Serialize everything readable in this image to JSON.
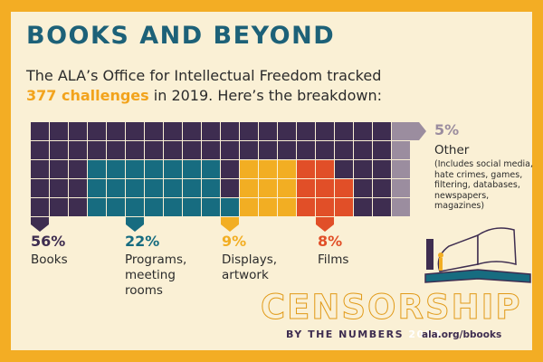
{
  "title": "BOOKS AND BEYOND",
  "intro": {
    "line1": "The ALA’s Office for Intellectual Freedom tracked",
    "highlight": "377 challenges",
    "line2_rest": " in 2019. Here’s the breakdown:"
  },
  "chart_data": {
    "type": "waffle",
    "total_challenges": 377,
    "year": 2019,
    "grid": {
      "cols": 20,
      "rows": 5
    },
    "categories": [
      {
        "name": "Books",
        "label": "Books",
        "percent": 56,
        "color": "#3e2d50"
      },
      {
        "name": "Programs, meeting rooms",
        "label": "Programs, meeting rooms",
        "percent": 22,
        "color": "#176c80"
      },
      {
        "name": "Displays, artwork",
        "label": "Displays, artwork",
        "percent": 9,
        "color": "#f2ae23"
      },
      {
        "name": "Films",
        "label": "Films",
        "percent": 8,
        "color": "#e14f28"
      },
      {
        "name": "Other",
        "label": "Other",
        "percent": 5,
        "color": "#9b8d9f",
        "description": "(Includes social media, hate crimes, games, filtering, databases, newspapers, magazines)"
      }
    ]
  },
  "labels": {
    "books": {
      "pct": "56%",
      "text": "Books"
    },
    "programs": {
      "pct": "22%",
      "text1": "Programs,",
      "text2": "meeting",
      "text3": "rooms"
    },
    "displays": {
      "pct": "9%",
      "text1": "Displays,",
      "text2": "artwork"
    },
    "films": {
      "pct": "8%",
      "text": "Films"
    },
    "other": {
      "pct": "5%",
      "text": "Other",
      "desc": "(Includes social media, hate crimes, games, filtering, databases, newspapers, magazines)"
    }
  },
  "brand": {
    "title": "CENSORSHIP",
    "sub": "BY THE NUMBERS",
    "year": "2019",
    "url": "ala.org/bbooks"
  }
}
